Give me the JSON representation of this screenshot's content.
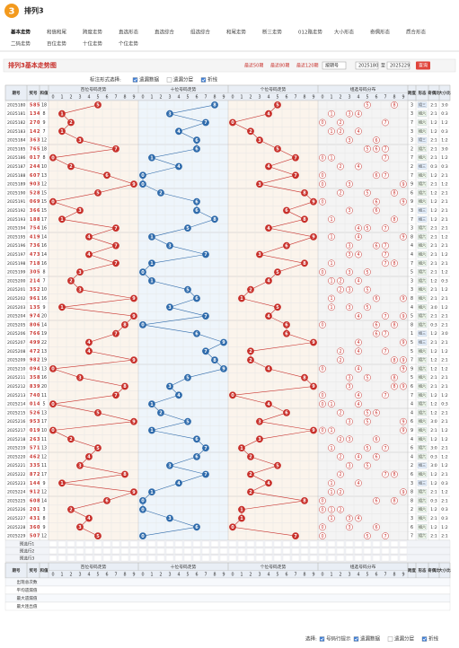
{
  "header": {
    "logo": "3",
    "title": "排列3"
  },
  "nav": [
    "基本走势",
    "和值和尾",
    "跨度走势",
    "直选形态",
    "直选综合",
    "组选综合",
    "和尾走势",
    "断三走势",
    "012路走势",
    "大小形态",
    "奇偶形态",
    "质合形态",
    "二码走势",
    "百位走势",
    "十位走势",
    "个位走势"
  ],
  "chart": {
    "title": "排列3基本走势图",
    "periods": [
      "最近50期",
      "最近80期",
      "最近120期"
    ],
    "order": "按期号",
    "from": "2025180",
    "to_label": "至",
    "to": "2025229",
    "query": "查询",
    "options_label": "标注形式选择:",
    "options": [
      {
        "label": "遗漏数据",
        "checked": true
      },
      {
        "label": "遗漏分层",
        "checked": false
      },
      {
        "label": "折线",
        "checked": true
      }
    ],
    "columns": {
      "issue": "期号",
      "number": "奖号",
      "sum": "和值",
      "span": "跨度",
      "shape": "形态",
      "odd_even": "奇偶比",
      "big_small": "大小比"
    },
    "digits": [
      0,
      1,
      2,
      3,
      4,
      5,
      6,
      7,
      8,
      9
    ],
    "positions": [
      {
        "name": "百位号码走势",
        "color": "#c8302b"
      },
      {
        "name": "十位号码走势",
        "color": "#2f6bab"
      },
      {
        "name": "个位号码走势",
        "color": "#c8302b"
      },
      {
        "name": "组选号码分布",
        "color": "#c8302b"
      }
    ],
    "rows": [
      [
        "2025180",
        [
          5,
          8,
          5
        ],
        18,
        3,
        "组三",
        "2:1",
        "3:0"
      ],
      [
        "2025181",
        [
          1,
          3,
          4
        ],
        8,
        3,
        "组六",
        "2:1",
        "0:3"
      ],
      [
        "2025182",
        [
          2,
          7,
          0
        ],
        9,
        7,
        "组六",
        "1:2",
        "1:2"
      ],
      [
        "2025183",
        [
          1,
          4,
          2
        ],
        7,
        3,
        "组六",
        "1:2",
        "0:3"
      ],
      [
        "2025184",
        [
          3,
          6,
          3
        ],
        12,
        3,
        "组三",
        "2:1",
        "1:2"
      ],
      [
        "2025185",
        [
          7,
          6,
          5
        ],
        18,
        2,
        "组六",
        "2:1",
        "3:0"
      ],
      [
        "2025186",
        [
          0,
          1,
          7
        ],
        8,
        7,
        "组六",
        "2:1",
        "1:2"
      ],
      [
        "2025187",
        [
          2,
          4,
          4
        ],
        10,
        2,
        "组三",
        "0:3",
        "0:3"
      ],
      [
        "2025188",
        [
          6,
          0,
          7
        ],
        13,
        7,
        "组六",
        "1:2",
        "2:1"
      ],
      [
        "2025189",
        [
          9,
          0,
          3
        ],
        12,
        9,
        "组六",
        "2:1",
        "1:2"
      ],
      [
        "2025190",
        [
          5,
          2,
          8
        ],
        15,
        6,
        "组六",
        "1:2",
        "2:1"
      ],
      [
        "2025191",
        [
          0,
          6,
          9
        ],
        15,
        9,
        "组六",
        "1:2",
        "2:1"
      ],
      [
        "2025192",
        [
          3,
          6,
          6
        ],
        15,
        3,
        "组三",
        "1:2",
        "2:1"
      ],
      [
        "2025193",
        [
          1,
          8,
          8
        ],
        17,
        7,
        "组三",
        "1:2",
        "2:1"
      ],
      [
        "2025194",
        [
          7,
          5,
          4
        ],
        16,
        3,
        "组六",
        "2:1",
        "2:1"
      ],
      [
        "2025195",
        [
          4,
          1,
          9
        ],
        14,
        8,
        "组六",
        "2:1",
        "1:2"
      ],
      [
        "2025196",
        [
          7,
          3,
          6
        ],
        16,
        4,
        "组六",
        "2:1",
        "2:1"
      ],
      [
        "2025197",
        [
          4,
          7,
          3
        ],
        14,
        4,
        "组六",
        "2:1",
        "1:2"
      ],
      [
        "2025198",
        [
          7,
          1,
          8
        ],
        16,
        7,
        "组六",
        "2:1",
        "2:1"
      ],
      [
        "2025199",
        [
          3,
          0,
          5
        ],
        8,
        5,
        "组六",
        "2:1",
        "1:2"
      ],
      [
        "2025200",
        [
          2,
          1,
          4
        ],
        7,
        3,
        "组六",
        "1:2",
        "0:3"
      ],
      [
        "2025201",
        [
          3,
          5,
          2
        ],
        10,
        3,
        "组六",
        "2:1",
        "1:2"
      ],
      [
        "2025202",
        [
          9,
          6,
          1
        ],
        16,
        8,
        "组六",
        "2:1",
        "2:1"
      ],
      [
        "2025203",
        [
          1,
          3,
          5
        ],
        9,
        4,
        "组六",
        "3:0",
        "1:2"
      ],
      [
        "2025204",
        [
          9,
          7,
          4
        ],
        20,
        5,
        "组六",
        "2:1",
        "2:1"
      ],
      [
        "2025205",
        [
          8,
          0,
          6
        ],
        14,
        8,
        "组六",
        "0:3",
        "2:1"
      ],
      [
        "2025206",
        [
          7,
          6,
          6
        ],
        19,
        1,
        "组三",
        "1:2",
        "3:0"
      ],
      [
        "2025207",
        [
          4,
          9,
          9
        ],
        22,
        5,
        "组三",
        "2:1",
        "2:1"
      ],
      [
        "2025208",
        [
          4,
          7,
          2
        ],
        13,
        5,
        "组六",
        "1:2",
        "1:2"
      ],
      [
        "2025209",
        [
          9,
          8,
          2
        ],
        19,
        7,
        "组六",
        "1:2",
        "2:1"
      ],
      [
        "2025210",
        [
          0,
          9,
          4
        ],
        13,
        9,
        "组六",
        "1:2",
        "1:2"
      ],
      [
        "2025211",
        [
          3,
          5,
          8
        ],
        16,
        5,
        "组六",
        "2:1",
        "2:1"
      ],
      [
        "2025212",
        [
          8,
          3,
          9
        ],
        20,
        6,
        "组六",
        "2:1",
        "2:1"
      ],
      [
        "2025213",
        [
          7,
          4,
          0
        ],
        11,
        7,
        "组六",
        "1:2",
        "1:2"
      ],
      [
        "2025214",
        [
          0,
          1,
          4
        ],
        5,
        4,
        "组六",
        "1:2",
        "0:3"
      ],
      [
        "2025215",
        [
          5,
          2,
          6
        ],
        13,
        4,
        "组六",
        "1:2",
        "2:1"
      ],
      [
        "2025216",
        [
          9,
          5,
          3
        ],
        17,
        6,
        "组六",
        "3:0",
        "2:1"
      ],
      [
        "2025217",
        [
          0,
          1,
          9
        ],
        10,
        9,
        "组六",
        "2:1",
        "1:2"
      ],
      [
        "2025218",
        [
          2,
          6,
          3
        ],
        11,
        4,
        "组六",
        "1:2",
        "1:2"
      ],
      [
        "2025219",
        [
          5,
          7,
          1
        ],
        13,
        6,
        "组六",
        "3:0",
        "2:1"
      ],
      [
        "2025220",
        [
          4,
          6,
          2
        ],
        12,
        4,
        "组六",
        "0:3",
        "1:2"
      ],
      [
        "2025221",
        [
          3,
          3,
          5
        ],
        11,
        2,
        "组三",
        "3:0",
        "1:2"
      ],
      [
        "2025222",
        [
          8,
          7,
          2
        ],
        17,
        6,
        "组六",
        "1:2",
        "2:1"
      ],
      [
        "2025223",
        [
          1,
          4,
          4
        ],
        9,
        3,
        "组三",
        "1:2",
        "0:3"
      ],
      [
        "2025224",
        [
          9,
          1,
          2
        ],
        12,
        8,
        "组六",
        "2:1",
        "1:2"
      ],
      [
        "2025225",
        [
          6,
          0,
          8
        ],
        14,
        8,
        "组六",
        "0:3",
        "2:1"
      ],
      [
        "2025226",
        [
          2,
          0,
          1
        ],
        3,
        2,
        "组六",
        "1:2",
        "0:3"
      ],
      [
        "2025227",
        [
          4,
          3,
          1
        ],
        8,
        3,
        "组六",
        "2:1",
        "0:3"
      ],
      [
        "2025228",
        [
          3,
          6,
          0
        ],
        9,
        6,
        "组六",
        "1:2",
        "1:2"
      ],
      [
        "2025229",
        [
          5,
          0,
          7
        ],
        12,
        7,
        "组六",
        "2:1",
        "2:1"
      ]
    ],
    "preselect": [
      "预选行1",
      "预选行2",
      "预选行3"
    ],
    "stats": [
      "出现总次数",
      "平均遗漏值",
      "最大遗漏值",
      "最大连出值"
    ],
    "footer": {
      "label": "选择:",
      "options": [
        {
          "label": "号码行提示",
          "checked": true
        },
        {
          "label": "遗漏数据",
          "checked": true
        },
        {
          "label": "遗漏分层",
          "checked": false
        },
        {
          "label": "折线",
          "checked": true
        }
      ]
    }
  }
}
